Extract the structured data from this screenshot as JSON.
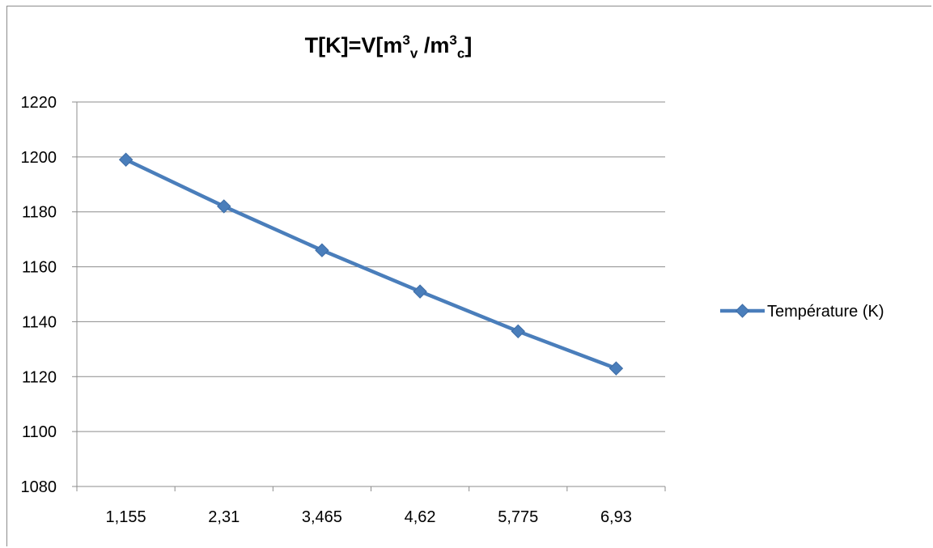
{
  "chart_data": {
    "type": "line",
    "title": {
      "prefix": "T[K]=V[m",
      "sup1": "3",
      "sub1": "v",
      "middle": " /m",
      "sup2": "3",
      "sub2": "c",
      "suffix": "]"
    },
    "categories": [
      "1,155",
      "2,31",
      "3,465",
      "4,62",
      "5,775",
      "6,93"
    ],
    "series": [
      {
        "name": "Température (K)",
        "values": [
          1199,
          1182,
          1166,
          1151,
          1136.5,
          1123
        ],
        "color": "#4a7ebb"
      }
    ],
    "ylim": [
      1080,
      1220
    ],
    "yticks": [
      1080,
      1100,
      1120,
      1140,
      1160,
      1180,
      1200,
      1220
    ],
    "grid": true,
    "legend": "right",
    "marker": "diamond"
  }
}
